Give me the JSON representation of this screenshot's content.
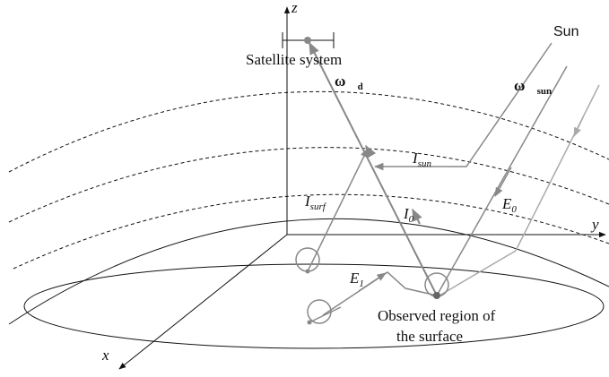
{
  "axes": {
    "z": "z",
    "y": "y",
    "x": "x"
  },
  "labels": {
    "satellite": "Satellite system",
    "sun": "Sun",
    "omega_d": {
      "symbol": "ω⃗",
      "sub": "d"
    },
    "omega_sun": {
      "symbol": "ω⃗",
      "sub": "sun"
    },
    "i_sun": {
      "symbol": "I",
      "sub": "sun"
    },
    "i_surf": {
      "symbol": "I",
      "sub": "surf"
    },
    "i_0": {
      "symbol": "I",
      "sub": "0"
    },
    "e_0": {
      "symbol": "E",
      "sub": "0"
    },
    "e_1": {
      "symbol": "E",
      "sub": "1"
    },
    "observed": [
      "Observed region of",
      "the surface"
    ]
  }
}
